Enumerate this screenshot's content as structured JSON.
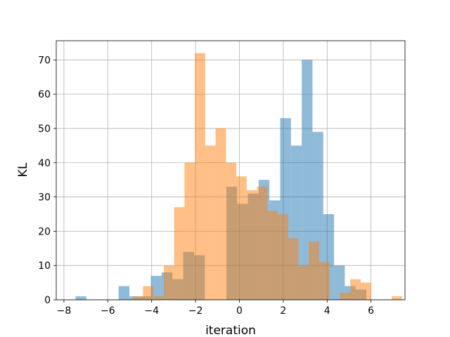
{
  "chart_data": {
    "type": "bar",
    "title": "",
    "xlabel": "iteration",
    "ylabel": "KL",
    "xlim": [
      -8.35,
      7.55
    ],
    "ylim": [
      0,
      75.6
    ],
    "xticks": [
      -8,
      -6,
      -4,
      -2,
      0,
      2,
      4,
      6
    ],
    "yticks": [
      0,
      10,
      20,
      30,
      40,
      50,
      60,
      70
    ],
    "grid": true,
    "legend": "none",
    "series": [
      {
        "color": "#1f77b4",
        "alpha": 0.5,
        "bin_start": -7.47,
        "bin_width": 0.491,
        "values": [
          1,
          0,
          0,
          0,
          4,
          1,
          1,
          7,
          8,
          6,
          14,
          13,
          0,
          0,
          33,
          28,
          31,
          35,
          29,
          53,
          45,
          70,
          49,
          25,
          10,
          4,
          3,
          0,
          0,
          0,
          0,
          0,
          0,
          0
        ]
      },
      {
        "color": "#ff7f0e",
        "alpha": 0.5,
        "bin_start": -5.81,
        "bin_width": 0.4725,
        "values": [
          0,
          0,
          1,
          4,
          1,
          10,
          27,
          40,
          72,
          45,
          50,
          40,
          36,
          32,
          33,
          26,
          25,
          18,
          10,
          17,
          11,
          0,
          2,
          6,
          5,
          0,
          0,
          1
        ]
      }
    ]
  }
}
